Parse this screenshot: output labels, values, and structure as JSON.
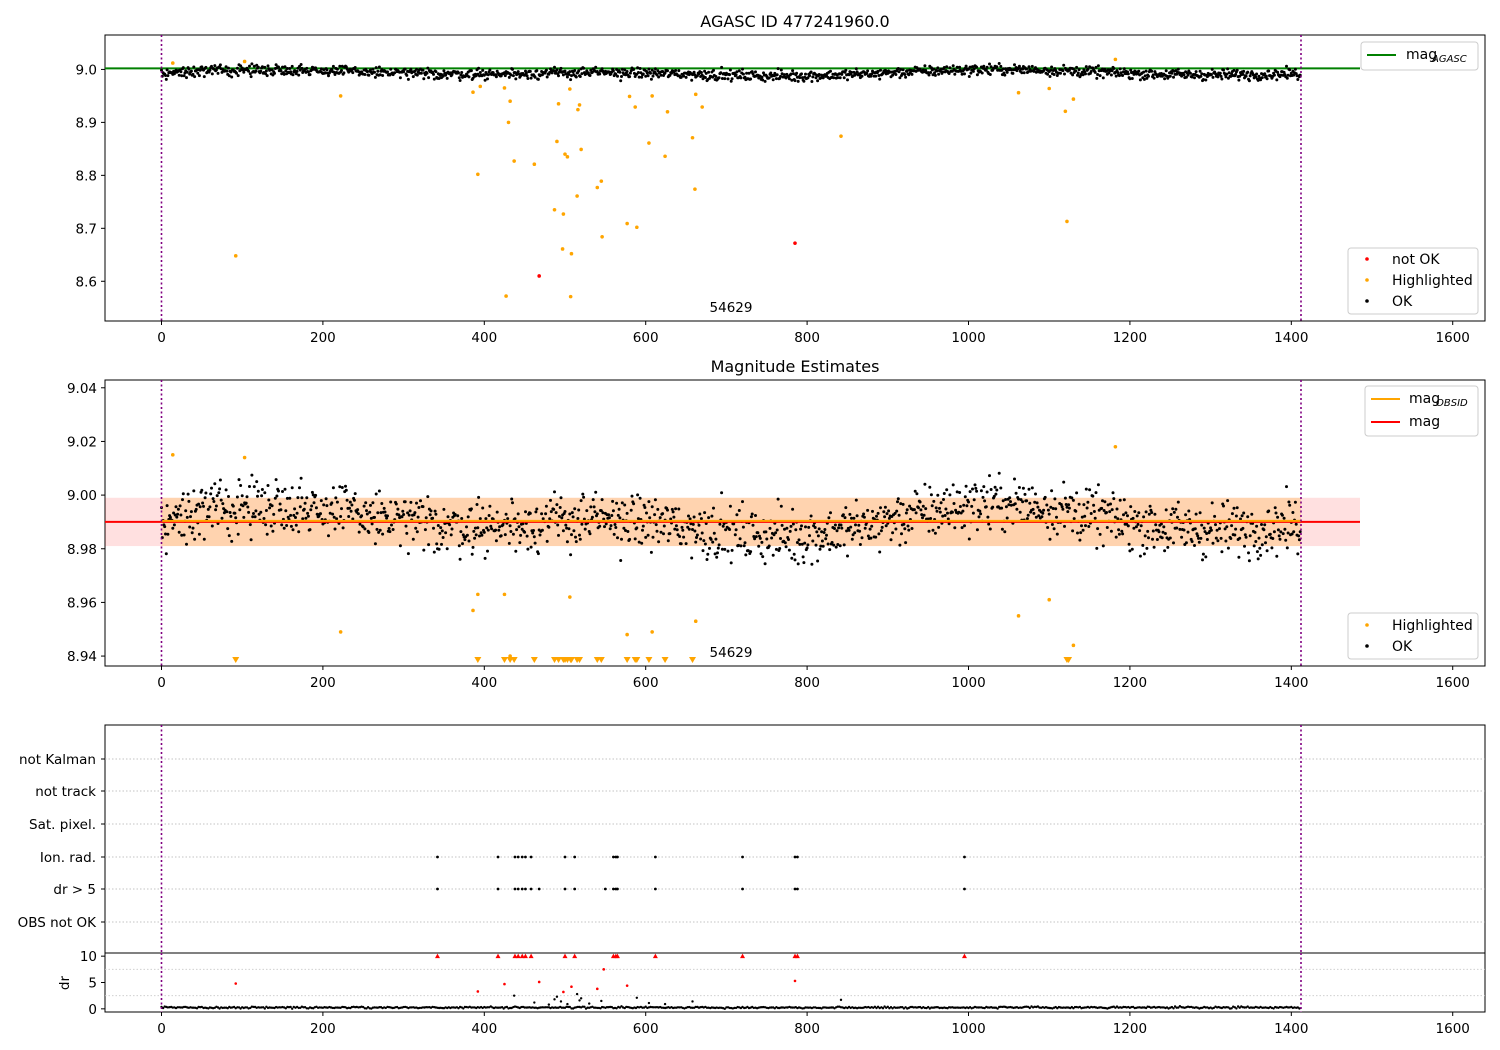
{
  "chart_data": [
    {
      "type": "scatter",
      "title": "AGASC ID 477241960.0",
      "xlim": [
        -70,
        1640
      ],
      "ylim": [
        8.525,
        9.065
      ],
      "xticks": [
        "0",
        "200",
        "400",
        "600",
        "800",
        "1000",
        "1200",
        "1400",
        "1600"
      ],
      "yticks": [
        "8.6",
        "8.7",
        "8.8",
        "8.9",
        "9.0"
      ],
      "annotation": "54629",
      "vlines": [
        0,
        1412
      ],
      "hline": {
        "name": "mag_AGASC",
        "y": 9.002,
        "color": "#008000"
      },
      "legend_line": {
        "label": "mag",
        "subscript": "AGASC",
        "placement": "upper right"
      },
      "legend_points": {
        "placement": "lower right",
        "entries": [
          {
            "label": "not OK",
            "color": "#ff0000"
          },
          {
            "label": "Highlighted",
            "color": "#ffa500"
          },
          {
            "label": "OK",
            "color": "#000000"
          }
        ]
      },
      "ok_band": {
        "center": 8.99,
        "amplitude": 0.007,
        "noise": 0.007
      },
      "highlighted": [
        [
          14,
          9.012
        ],
        [
          103,
          9.015
        ],
        [
          92,
          8.648
        ],
        [
          222,
          8.95
        ],
        [
          386,
          8.957
        ],
        [
          392,
          8.802
        ],
        [
          395,
          8.968
        ],
        [
          425,
          8.965
        ],
        [
          427,
          8.572
        ],
        [
          430,
          8.9
        ],
        [
          432,
          8.94
        ],
        [
          437,
          8.827
        ],
        [
          462,
          8.821
        ],
        [
          487,
          8.735
        ],
        [
          490,
          8.864
        ],
        [
          492,
          8.935
        ],
        [
          497,
          8.661
        ],
        [
          498,
          8.727
        ],
        [
          500,
          8.84
        ],
        [
          503,
          8.835
        ],
        [
          506,
          8.963
        ],
        [
          507,
          8.571
        ],
        [
          508,
          8.652
        ],
        [
          515,
          8.761
        ],
        [
          516,
          8.924
        ],
        [
          518,
          8.933
        ],
        [
          520,
          8.849
        ],
        [
          540,
          8.777
        ],
        [
          545,
          8.789
        ],
        [
          546,
          8.684
        ],
        [
          577,
          8.709
        ],
        [
          580,
          8.949
        ],
        [
          587,
          8.929
        ],
        [
          589,
          8.702
        ],
        [
          604,
          8.861
        ],
        [
          608,
          8.95
        ],
        [
          624,
          8.836
        ],
        [
          627,
          8.92
        ],
        [
          658,
          8.871
        ],
        [
          661,
          8.774
        ],
        [
          662,
          8.953
        ],
        [
          670,
          8.929
        ],
        [
          842,
          8.874
        ],
        [
          1062,
          8.956
        ],
        [
          1100,
          8.964
        ],
        [
          1120,
          8.921
        ],
        [
          1122,
          8.713
        ],
        [
          1130,
          8.944
        ],
        [
          1182,
          9.019
        ]
      ],
      "not_ok": [
        [
          468,
          8.61
        ],
        [
          785,
          8.672
        ]
      ]
    },
    {
      "type": "scatter",
      "title": "Magnitude Estimates",
      "xlim": [
        -70,
        1640
      ],
      "ylim": [
        8.9363,
        9.0429
      ],
      "xticks": [
        "0",
        "200",
        "400",
        "600",
        "800",
        "1000",
        "1200",
        "1400",
        "1600"
      ],
      "yticks": [
        "8.94",
        "8.96",
        "8.98",
        "9.00",
        "9.02",
        "9.04"
      ],
      "annotation": "54629",
      "vlines": [
        0,
        1412
      ],
      "mag_obsid": {
        "y": 8.99,
        "x_end": 1412,
        "band_low": 8.981,
        "band_high": 8.999,
        "color": "#ffa500"
      },
      "mag": {
        "y": 8.99,
        "band_low": 8.981,
        "band_high": 8.999,
        "color": "#ff0000"
      },
      "legend_line": {
        "placement": "upper right",
        "entries": [
          {
            "label": "mag",
            "subscript": "OBSID",
            "color": "#ffa500"
          },
          {
            "label": "mag",
            "subscript": "",
            "color": "#ff0000"
          }
        ]
      },
      "legend_points": {
        "placement": "lower right",
        "entries": [
          {
            "label": "Highlighted",
            "color": "#ffa500"
          },
          {
            "label": "OK",
            "color": "#000000"
          }
        ]
      },
      "ok_band": {
        "center": 8.99,
        "amplitude": 0.007,
        "noise": 0.007
      },
      "highlighted": [
        [
          14,
          9.015
        ],
        [
          103,
          9.014
        ],
        [
          222,
          8.949
        ],
        [
          386,
          8.957
        ],
        [
          392,
          8.963
        ],
        [
          425,
          8.963
        ],
        [
          432,
          8.94
        ],
        [
          506,
          8.962
        ],
        [
          577,
          8.948
        ],
        [
          608,
          8.949
        ],
        [
          662,
          8.953
        ],
        [
          1062,
          8.955
        ],
        [
          1100,
          8.961
        ],
        [
          1130,
          8.944
        ],
        [
          1182,
          9.018
        ]
      ],
      "out_of_range_x": [
        92,
        392,
        425,
        432,
        437,
        462,
        487,
        492,
        498,
        500,
        503,
        507,
        508,
        515,
        518,
        540,
        545,
        577,
        587,
        589,
        604,
        624,
        658,
        1122,
        1124
      ]
    },
    {
      "type": "scatter",
      "title": "",
      "xlim": [
        -70,
        1640
      ],
      "xticks": [
        "0",
        "200",
        "400",
        "600",
        "800",
        "1000",
        "1200",
        "1400",
        "1600"
      ],
      "vlines": [
        0,
        1412
      ],
      "flag_rows": [
        "not Kalman",
        "not track",
        "Sat. pixel.",
        "Ion. rad.",
        "dr > 5",
        "OBS not OK"
      ],
      "flag_events": {
        "Ion. rad.": [
          342,
          417,
          438,
          442,
          447,
          451,
          458,
          500,
          512,
          560,
          563,
          565,
          612,
          720,
          785,
          788,
          995
        ],
        "dr > 5": [
          342,
          417,
          438,
          442,
          447,
          451,
          458,
          468,
          500,
          512,
          550,
          560,
          563,
          565,
          612,
          720,
          785,
          788,
          995
        ]
      }
    },
    {
      "type": "scatter",
      "title": "",
      "ylabel": "dr",
      "xlim": [
        -70,
        1640
      ],
      "ylim": [
        -0.6,
        10.6
      ],
      "xticks": [
        "0",
        "200",
        "400",
        "600",
        "800",
        "1000",
        "1200",
        "1400",
        "1600"
      ],
      "yticks": [
        "0",
        "5",
        "10"
      ],
      "vlines": [
        0,
        1412
      ],
      "dr_capped": [
        342,
        417,
        438,
        442,
        447,
        451,
        458,
        500,
        512,
        560,
        563,
        565,
        612,
        720,
        785,
        788,
        995
      ],
      "dr_red": [
        [
          92,
          4.8
        ],
        [
          392,
          3.3
        ],
        [
          425,
          4.7
        ],
        [
          468,
          5.1
        ],
        [
          508,
          4.2
        ],
        [
          548,
          7.5
        ],
        [
          540,
          3.8
        ],
        [
          577,
          4.4
        ],
        [
          785,
          5.3
        ],
        [
          498,
          3.2
        ]
      ],
      "dr_black": [
        [
          437,
          2.5
        ],
        [
          462,
          1.2
        ],
        [
          487,
          1.8
        ],
        [
          490,
          2.3
        ],
        [
          495,
          1.4
        ],
        [
          503,
          0.9
        ],
        [
          515,
          2.8
        ],
        [
          518,
          1.6
        ],
        [
          520,
          2.0
        ],
        [
          545,
          1.5
        ],
        [
          589,
          2.1
        ],
        [
          604,
          1.1
        ],
        [
          624,
          0.9
        ],
        [
          658,
          1.4
        ],
        [
          842,
          1.7
        ],
        [
          480,
          0.8
        ],
        [
          530,
          1.0
        ]
      ]
    }
  ]
}
